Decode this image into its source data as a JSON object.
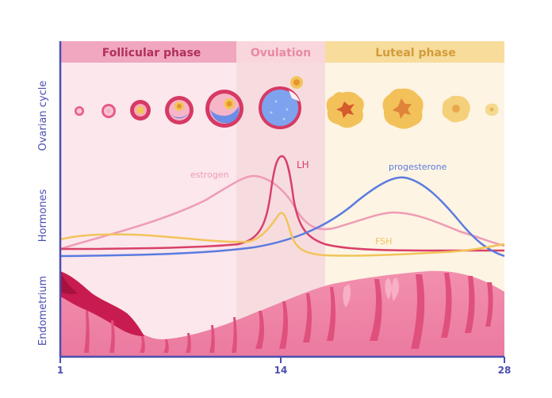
{
  "phases": [
    {
      "label": "Follicular phase",
      "color": "#f0a7bf",
      "bg": "#fbe7ec",
      "text_color": "#b0305a"
    },
    {
      "label": "Ovulation",
      "color": "#f9d6dc",
      "bg": "#f7dcdf",
      "text_color": "#e88aa0"
    },
    {
      "label": "Luteal phase",
      "color": "#f7dc9c",
      "bg": "#fdf4e3",
      "text_color": "#d29c3a"
    }
  ],
  "axis_labels": {
    "ovarian": "Ovarian cycle",
    "hormones": "Hormones",
    "endometrium": "Endometrium"
  },
  "axis_color": "#4a4fb0",
  "ticks": [
    "1",
    "14",
    "28"
  ],
  "hormones": [
    {
      "name": "estrogen",
      "color": "#ef9bb5"
    },
    {
      "name": "LH",
      "color": "#d94068"
    },
    {
      "name": "progesterone",
      "color": "#5b7be0"
    },
    {
      "name": "FSH",
      "color": "#f2c45a"
    }
  ],
  "icons": {
    "follicles": "ovarian-follicle-stages-icon",
    "corpus_luteum": "corpus-luteum-stages-icon",
    "egg": "released-egg-icon",
    "endometrium": "endometrium-tissue-icon"
  }
}
